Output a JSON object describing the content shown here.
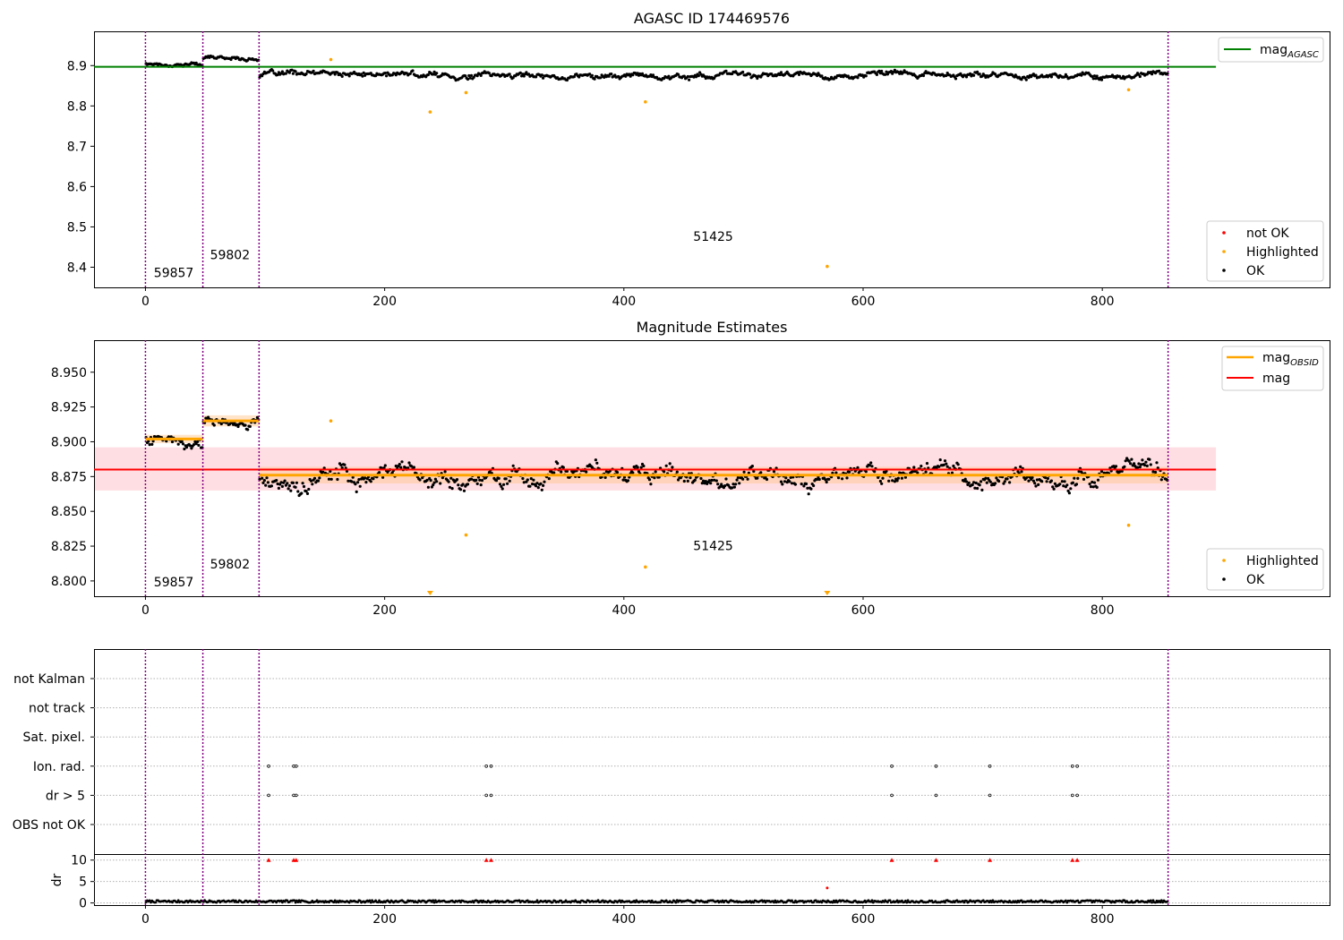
{
  "colors": {
    "ok": "#000000",
    "highlighted": "#ffa500",
    "not_ok": "#ff0000",
    "mag_agasc": "#008000",
    "mag": "#ff0000",
    "mag_obsid": "#ffa500",
    "obsid_boundary": "#800080",
    "band_mag": "#ffb6c1",
    "band_obsid": "#ffc48a"
  },
  "chart_data": [
    {
      "type": "scatter",
      "title": "AGASC ID 174469576",
      "xlim": [
        -43,
        990
      ],
      "ylim": [
        8.35,
        8.985
      ],
      "xticks": [
        0,
        200,
        400,
        600,
        800
      ],
      "yticks": [
        8.4,
        8.5,
        8.6,
        8.7,
        8.8,
        8.9
      ],
      "ytick_labels": [
        "8.4",
        "8.5",
        "8.6",
        "8.7",
        "8.8",
        "8.9"
      ],
      "obsid_boundaries": [
        0,
        48,
        95,
        855
      ],
      "obsid_labels": [
        {
          "text": "59857",
          "x": 7,
          "y": 8.375
        },
        {
          "text": "59802",
          "x": 54,
          "y": 8.42
        },
        {
          "text": "51425",
          "x": 458,
          "y": 8.465
        }
      ],
      "hline": {
        "name": "mag_AGASC",
        "y": 8.897,
        "x": [
          -43,
          895
        ]
      },
      "ok_segments": [
        {
          "x": [
            0,
            48
          ],
          "level": 8.905,
          "spread": 0.009
        },
        {
          "x": [
            48,
            95
          ],
          "level": 8.918,
          "spread": 0.007
        },
        {
          "x": [
            95,
            855
          ],
          "level": 8.876,
          "spread": 0.012
        }
      ],
      "highlighted": [
        {
          "x": 155,
          "y": 8.915
        },
        {
          "x": 238,
          "y": 8.785
        },
        {
          "x": 268,
          "y": 8.833
        },
        {
          "x": 418,
          "y": 8.81
        },
        {
          "x": 570,
          "y": 8.402
        },
        {
          "x": 822,
          "y": 8.84
        }
      ],
      "legend_top": [
        "mag",
        "AGASC"
      ],
      "legend_bottom": [
        "not OK",
        "Highlighted",
        "OK"
      ]
    },
    {
      "type": "scatter",
      "title": "Magnitude Estimates",
      "xlim": [
        -43,
        990
      ],
      "ylim": [
        8.789,
        8.973
      ],
      "xticks": [
        0,
        200,
        400,
        600,
        800
      ],
      "yticks": [
        8.8,
        8.825,
        8.85,
        8.875,
        8.9,
        8.925,
        8.95
      ],
      "ytick_labels": [
        "8.800",
        "8.825",
        "8.850",
        "8.875",
        "8.900",
        "8.925",
        "8.950"
      ],
      "obsid_boundaries": [
        0,
        48,
        95,
        855
      ],
      "obsid_labels": [
        {
          "text": "59857",
          "x": 7,
          "y": 8.796
        },
        {
          "text": "59802",
          "x": 54,
          "y": 8.809
        },
        {
          "text": "51425",
          "x": 458,
          "y": 8.822
        }
      ],
      "mag": {
        "y": 8.88,
        "band": [
          8.865,
          8.896
        ],
        "x": [
          -43,
          895
        ]
      },
      "mag_obsid": [
        {
          "x": [
            0,
            48
          ],
          "y": 8.902,
          "band": [
            8.899,
            8.905
          ]
        },
        {
          "x": [
            48,
            95
          ],
          "y": 8.915,
          "band": [
            8.911,
            8.919
          ]
        },
        {
          "x": [
            95,
            855
          ],
          "y": 8.876,
          "band": [
            8.87,
            8.882
          ]
        }
      ],
      "ok_segments": [
        {
          "x": [
            0,
            48
          ],
          "level": 8.904,
          "spread": 0.008
        },
        {
          "x": [
            48,
            95
          ],
          "level": 8.915,
          "spread": 0.006
        },
        {
          "x": [
            95,
            855
          ],
          "level": 8.876,
          "spread": 0.011
        }
      ],
      "highlighted": [
        {
          "x": 155,
          "y": 8.915
        },
        {
          "x": 268,
          "y": 8.833
        },
        {
          "x": 418,
          "y": 8.81
        },
        {
          "x": 822,
          "y": 8.84
        }
      ],
      "offscale_markers": [
        238,
        570
      ],
      "legend_top": [
        "mag",
        "OBSID",
        "mag"
      ],
      "legend_bottom": [
        "Highlighted",
        "OK"
      ]
    },
    {
      "type": "scatter",
      "title": "",
      "xlim": [
        -43,
        990
      ],
      "xticks": [
        0,
        200,
        400,
        600,
        800
      ],
      "flag_labels": [
        "not Kalman",
        "not track",
        "Sat. pixel.",
        "Ion. rad.",
        "dr > 5",
        "OBS not OK"
      ],
      "flag_points": {
        "Ion. rad.": [
          103,
          124,
          126,
          285,
          289,
          624,
          661,
          706,
          775,
          779
        ],
        "dr > 5": [
          103,
          124,
          126,
          285,
          289,
          624,
          661,
          706,
          775,
          779
        ]
      },
      "obsid_boundaries": [
        0,
        48,
        95,
        855
      ],
      "dr": {
        "ylabel": "dr",
        "ylim": [
          -0.5,
          11.2
        ],
        "yticks": [
          0,
          5,
          10
        ],
        "ytick_labels": [
          "0",
          "5",
          "10"
        ],
        "level": 0.35,
        "spread": 0.25,
        "clipped_x": [
          103,
          124,
          126,
          285,
          289,
          624,
          661,
          706,
          775,
          779
        ],
        "clipped_y": 10,
        "outlier": {
          "x": 570,
          "y": 3.5
        }
      }
    }
  ]
}
